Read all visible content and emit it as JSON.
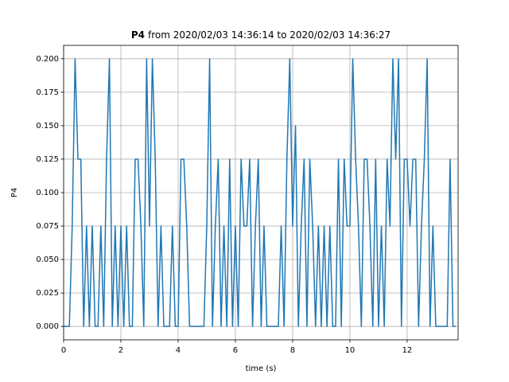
{
  "chart_data": {
    "type": "line",
    "title_bold": "P4",
    "title": "from 2020/02/03 14:36:14 to 2020/02/03 14:36:27",
    "x_label": "time (s)",
    "y_label": "P4",
    "x": [
      0,
      0.1,
      0.2,
      0.3,
      0.4,
      0.5,
      0.6,
      0.7,
      0.8,
      0.9,
      1,
      1.1,
      1.2,
      1.3,
      1.4,
      1.5,
      1.6,
      1.7,
      1.8,
      1.9,
      2,
      2.1,
      2.2,
      2.3,
      2.4,
      2.5,
      2.6,
      2.7,
      2.8,
      2.9,
      3,
      3.1,
      3.2,
      3.3,
      3.4,
      3.5,
      3.6,
      3.7,
      3.8,
      3.9,
      4,
      4.1,
      4.2,
      4.3,
      4.4,
      4.5,
      4.6,
      4.7,
      4.8,
      4.9,
      5,
      5.1,
      5.2,
      5.3,
      5.4,
      5.5,
      5.6,
      5.7,
      5.8,
      5.9,
      6,
      6.1,
      6.2,
      6.3,
      6.4,
      6.5,
      6.6,
      6.7,
      6.8,
      6.9,
      7,
      7.1,
      7.2,
      7.3,
      7.4,
      7.5,
      7.6,
      7.7,
      7.8,
      7.9,
      8,
      8.1,
      8.2,
      8.3,
      8.4,
      8.5,
      8.6,
      8.7,
      8.8,
      8.9,
      9,
      9.1,
      9.2,
      9.3,
      9.4,
      9.5,
      9.6,
      9.7,
      9.8,
      9.9,
      10,
      10.1,
      10.2,
      10.3,
      10.4,
      10.5,
      10.6,
      10.7,
      10.8,
      10.9,
      11,
      11.1,
      11.2,
      11.3,
      11.4,
      11.5,
      11.6,
      11.7,
      11.8,
      11.9,
      12,
      12.1,
      12.2,
      12.3,
      12.4,
      12.5,
      12.6,
      12.7,
      12.8,
      12.9,
      13,
      13.1,
      13.2,
      13.3,
      13.4,
      13.5,
      13.6,
      13.7
    ],
    "series": [
      {
        "name": "P4",
        "color": "#1f77b4",
        "values": [
          0,
          0,
          0,
          0.075,
          0.2,
          0.125,
          0.125,
          0,
          0.075,
          0,
          0.075,
          0,
          0,
          0.075,
          0,
          0.125,
          0.2,
          0,
          0.075,
          0,
          0.075,
          0,
          0.075,
          0,
          0,
          0.125,
          0.125,
          0.075,
          0,
          0.2,
          0.075,
          0.2,
          0.125,
          0,
          0.075,
          0,
          0,
          0,
          0.075,
          0,
          0,
          0.125,
          0.125,
          0.075,
          0,
          0,
          0,
          0,
          0,
          0,
          0.075,
          0.2,
          0,
          0.075,
          0.125,
          0,
          0.075,
          0,
          0.125,
          0,
          0.075,
          0,
          0.125,
          0.075,
          0.075,
          0.125,
          0,
          0.075,
          0.125,
          0,
          0.075,
          0,
          0,
          0,
          0,
          0,
          0.075,
          0,
          0.125,
          0.2,
          0.075,
          0.15,
          0,
          0.075,
          0.125,
          0,
          0.125,
          0.075,
          0,
          0.075,
          0,
          0.075,
          0,
          0.075,
          0,
          0,
          0.125,
          0,
          0.125,
          0.075,
          0.075,
          0.2,
          0.125,
          0.075,
          0,
          0.125,
          0.125,
          0.075,
          0,
          0.125,
          0,
          0.075,
          0,
          0.125,
          0.075,
          0.2,
          0.125,
          0.2,
          0,
          0.125,
          0.125,
          0.075,
          0.125,
          0.125,
          0,
          0.075,
          0.125,
          0.2,
          0,
          0.075,
          0,
          0,
          0,
          0,
          0,
          0.125,
          0,
          0
        ]
      }
    ],
    "xlim": [
      0,
      13.78
    ],
    "ylim": [
      -0.01,
      0.21
    ],
    "xticks": [
      0,
      2,
      4,
      6,
      8,
      10,
      12
    ],
    "yticks": [
      {
        "value": 0,
        "label": "0.000"
      },
      {
        "value": 0.025,
        "label": "0.025"
      },
      {
        "value": 0.05,
        "label": "0.050"
      },
      {
        "value": 0.075,
        "label": "0.075"
      },
      {
        "value": 0.1,
        "label": "0.100"
      },
      {
        "value": 0.125,
        "label": "0.125"
      },
      {
        "value": 0.15,
        "label": "0.150"
      },
      {
        "value": 0.175,
        "label": "0.175"
      },
      {
        "value": 0.2,
        "label": "0.200"
      }
    ],
    "grid": true
  }
}
